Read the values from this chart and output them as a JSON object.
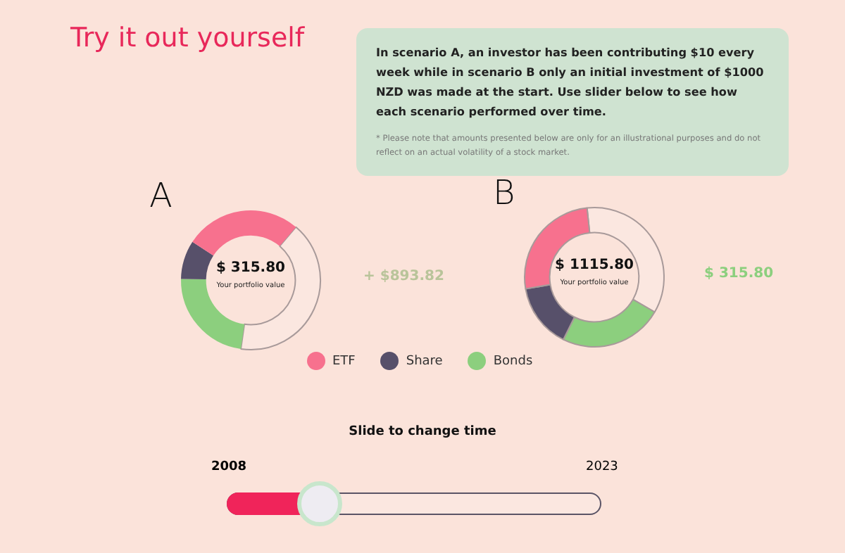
{
  "chart_data": [
    {
      "type": "other",
      "title": "Try it out yourself",
      "annotations": [
        "In scenario A, an investor has been contributing $10 every week while in scenario B only an initial investment of $1000 NZD was made at the start. Use slider below to see how each scenario performed over time.",
        "* Please note that amounts presented below are only for an illustrational purposes and do not reflect on an actual volatility of a stock market."
      ]
    },
    {
      "type": "donut",
      "title": "A",
      "categories": [
        "ETF",
        "Share",
        "Bonds",
        null
      ],
      "values": [
        27,
        9,
        23,
        41
      ],
      "colors": [
        "#f7718e",
        "#57506a",
        "#8ccf7e",
        "#fbe7e0"
      ],
      "legend": "bottom",
      "annotations": [
        "$ 315.80",
        "Your portfolio value",
        "+ $893.82"
      ]
    },
    {
      "type": "donut",
      "title": "B",
      "categories": [
        null,
        null,
        null,
        null
      ],
      "values": [
        26,
        15,
        24,
        35
      ],
      "colors": [
        "#f7718e",
        "#57506a",
        "#8ccf7e",
        "#fbe7e0"
      ],
      "annotations": [
        "$ 1115.80",
        "Your portfolio value",
        "$ 315.80"
      ]
    },
    {
      "type": "other",
      "title": "Slide to change time",
      "annotations": [
        "2008",
        "2023"
      ]
    }
  ]
}
